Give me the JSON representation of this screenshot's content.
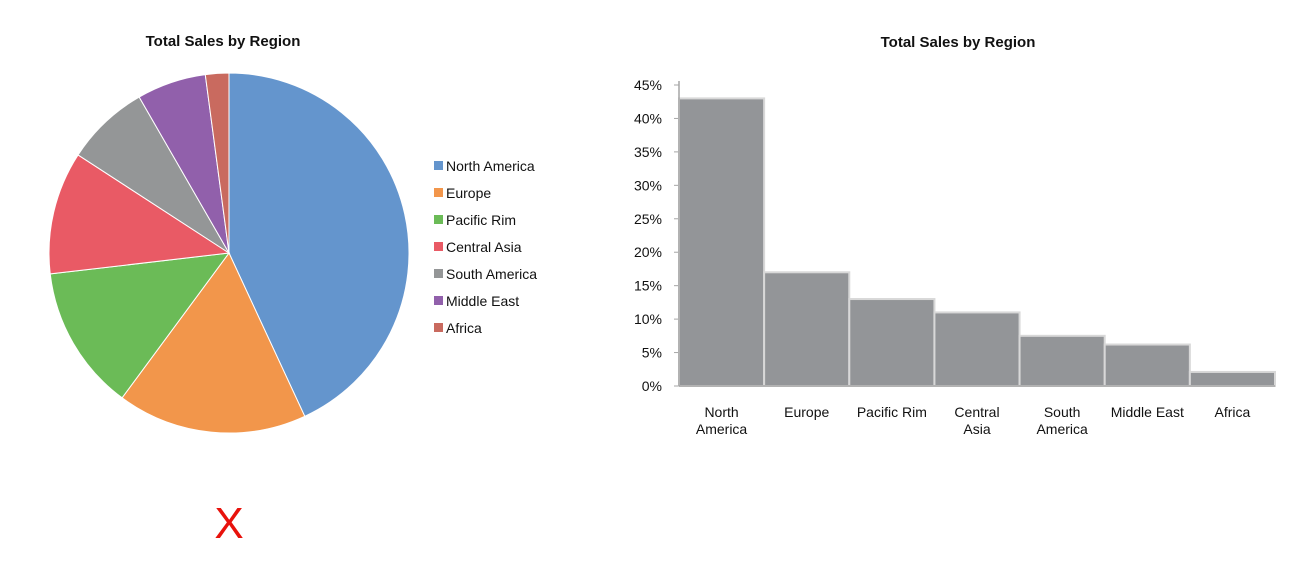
{
  "colors": {
    "text": "#111111",
    "bar_fill": "#939598",
    "bar_edge": "#d8d8d8",
    "axis": "#a6a6a6",
    "mark": "#e8120c"
  },
  "chart_data": [
    {
      "type": "pie",
      "title": "Total Sales by Region",
      "categories": [
        "North America",
        "Europe",
        "Pacific Rim",
        "Central Asia",
        "South America",
        "Middle East",
        "Africa"
      ],
      "values": [
        43,
        17,
        13,
        11,
        7.5,
        6.2,
        2.1
      ],
      "unit": "%",
      "colors": [
        "#6495cd",
        "#f2964b",
        "#6bbb57",
        "#e95a65",
        "#949697",
        "#9160ab",
        "#c96a5f"
      ],
      "legend": "right",
      "start_angle_deg": 0,
      "direction": "clockwise"
    },
    {
      "type": "bar",
      "title": "Total Sales by Region",
      "categories": [
        "North America",
        "Europe",
        "Pacific Rim",
        "Central Asia",
        "South America",
        "Middle East",
        "Africa"
      ],
      "category_labels": [
        [
          "North",
          "America"
        ],
        [
          "Europe"
        ],
        [
          "Pacific Rim"
        ],
        [
          "Central",
          "Asia"
        ],
        [
          "South",
          "America"
        ],
        [
          "Middle East"
        ],
        [
          "Africa"
        ]
      ],
      "values": [
        43,
        17,
        13,
        11,
        7.5,
        6.2,
        2.1
      ],
      "ylim": [
        0,
        45
      ],
      "yticks": [
        0,
        5,
        10,
        15,
        20,
        25,
        30,
        35,
        40,
        45
      ],
      "ytick_labels": [
        "0%",
        "5%",
        "10%",
        "15%",
        "20%",
        "25%",
        "30%",
        "35%",
        "40%",
        "45%"
      ],
      "grid": false,
      "legend": "none",
      "xlabel": "",
      "ylabel": ""
    }
  ],
  "annotation": {
    "mark_text": "X"
  }
}
